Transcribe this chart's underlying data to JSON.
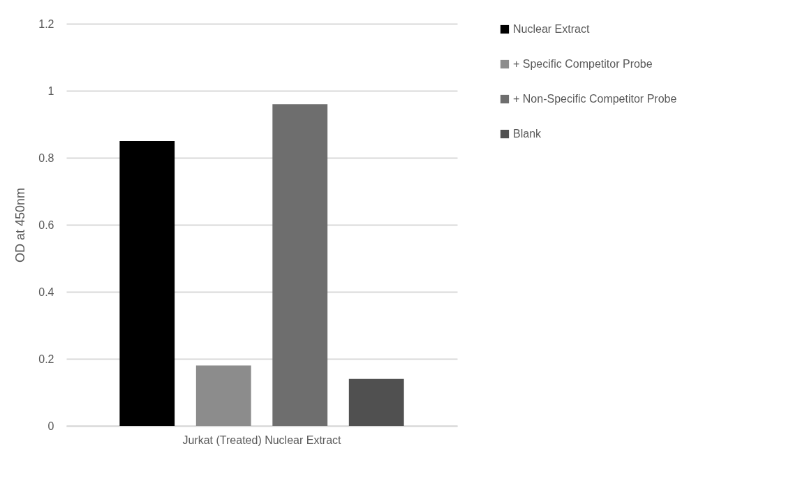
{
  "chart_data": {
    "type": "bar",
    "ylabel": "OD at 450nm",
    "categories": [
      "Jurkat (Treated) Nuclear Extract"
    ],
    "series": [
      {
        "name": "Nuclear Extract",
        "color": "#000000",
        "values": [
          0.85
        ]
      },
      {
        "name": "+ Specific Competitor Probe",
        "color": "#8c8c8c",
        "values": [
          0.18
        ]
      },
      {
        "name": "+ Non-Specific Competitor Probe",
        "color": "#6e6e6e",
        "values": [
          0.96
        ]
      },
      {
        "name": "Blank",
        "color": "#505050",
        "values": [
          0.14
        ]
      }
    ],
    "ylim": [
      0,
      1.2
    ],
    "yticks": [
      0,
      0.2,
      0.4,
      0.6,
      0.8,
      1,
      1.2
    ],
    "grid": "y",
    "legend": "right"
  }
}
